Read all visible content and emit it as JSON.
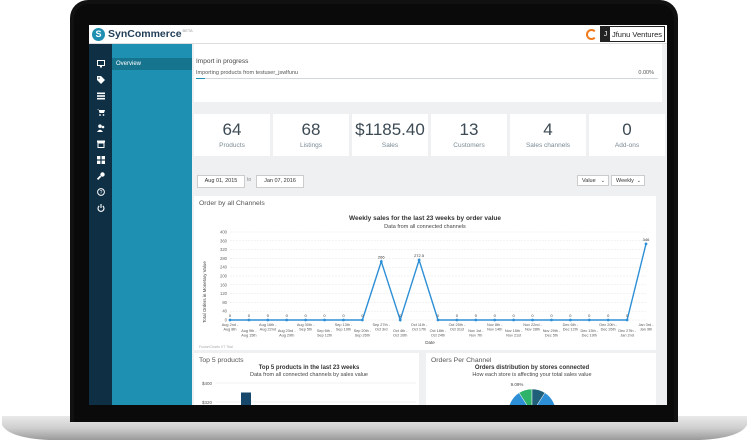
{
  "app": {
    "logo_text": "SynCommerce",
    "logo_mark": "S",
    "logo_beta": "BETA",
    "account_initial": "J",
    "account_name": "Jfunu Ventures"
  },
  "sidebar": {
    "icons": [
      "monitor-icon",
      "tag-icon",
      "list-icon",
      "cart-icon",
      "users-icon",
      "store-icon",
      "grid-icon",
      "wrench-icon",
      "help-icon",
      "power-icon"
    ]
  },
  "subnav": {
    "items": [
      {
        "label": "Overview"
      }
    ]
  },
  "import": {
    "title": "Import in progress",
    "text": "Importing products from testuser_jswlfunu",
    "percent": "0.00%",
    "progress": 0.02
  },
  "stats": [
    {
      "value": "64",
      "label": "Products"
    },
    {
      "value": "68",
      "label": "Listings"
    },
    {
      "value": "$1185.40",
      "label": "Sales"
    },
    {
      "value": "13",
      "label": "Customers"
    },
    {
      "value": "4",
      "label": "Sales channels"
    },
    {
      "value": "0",
      "label": "Add-ons"
    }
  ],
  "filters": {
    "date_from": "Aug 01, 2015",
    "to_label": "to",
    "date_to": "Jan 07, 2016",
    "metric": "Value",
    "period": "Weekly"
  },
  "colors": {
    "accent": "#1e91b3",
    "nav_dark": "#0f2f45",
    "line": "#2d8fd5",
    "pie_blue": "#2d8fd5",
    "pie_green": "#2fb36a"
  },
  "panels": {
    "channels_title": "Order by all Channels",
    "top_products_title": "Top 5 products",
    "orders_per_channel_title": "Orders Per Channel",
    "watermark": "FusionCharts XT Trial"
  },
  "chart_data": [
    {
      "type": "line",
      "title": "Weekly sales for the last 23 weeks by order value",
      "subtitle": "Data from all connected channels",
      "xlabel": "Date",
      "ylabel": "Total Orders in Monetary Value",
      "ylim": [
        0,
        400
      ],
      "yticks": [
        0,
        40,
        80,
        120,
        160,
        200,
        240,
        280,
        320,
        360,
        400
      ],
      "categories": [
        "Aug 2nd - Aug 8th",
        "Aug 9th - Aug 15th",
        "Aug 16th - Aug 22nd",
        "Aug 23rd - Aug 29th",
        "Aug 30th - Sep 5th",
        "Sep 6th - Sep 12th",
        "Sep 13th - Sep 19th",
        "Sep 20th - Sep 26th",
        "Sep 27th - Oct 3rd",
        "Oct 4th - Oct 10th",
        "Oct 11th - Oct 17th",
        "Oct 18th - Oct 24th",
        "Oct 25th - Oct 31st",
        "Nov 1st - Nov 7th",
        "Nov 8th - Nov 14th",
        "Nov 15th - Nov 21st",
        "Nov 22nd - Nov 28th",
        "Nov 29th - Dec 5th",
        "Dec 6th - Dec 12th",
        "Dec 13th - Dec 19th",
        "Dec 20th - Dec 26th",
        "Dec 27th - Jan 2nd",
        "Jan 3rd - Jan 9th"
      ],
      "values": [
        0,
        0,
        0,
        0,
        0,
        0,
        0,
        0,
        266,
        0,
        272.5,
        0,
        0,
        0,
        0,
        0,
        0,
        0,
        0,
        0,
        0,
        0,
        346
      ],
      "data_labels": [
        "0",
        "0",
        "0",
        "0",
        "0",
        "0",
        "0",
        "0",
        "266",
        "0",
        "272.5",
        "0",
        "0",
        "0",
        "0",
        "0",
        "0",
        "0",
        "0",
        "0",
        "0",
        "0",
        "346"
      ],
      "grid": true
    },
    {
      "type": "bar",
      "title": "Top 5 products in the last 23 weeks",
      "subtitle": "Data from all connected channels by sales value",
      "yticks": [
        "$400",
        "$320"
      ],
      "ylim": [
        0,
        400
      ],
      "values": [
        360
      ]
    },
    {
      "type": "pie",
      "title": "Orders distribution by stores connected",
      "subtitle": "How each store is affecting your total sales value",
      "slice_labels": [
        "9.09%"
      ],
      "values": [
        81.82,
        9.09,
        9.09
      ]
    }
  ]
}
